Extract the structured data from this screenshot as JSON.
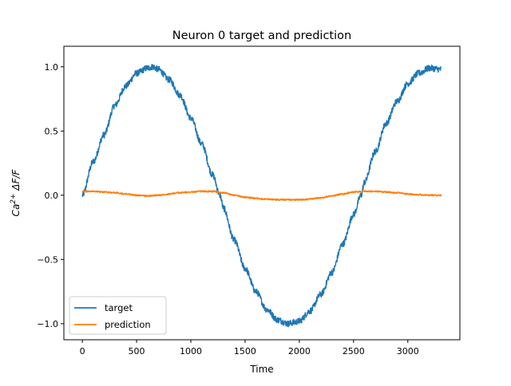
{
  "chart_data": {
    "type": "line",
    "title": "Neuron 0 target and prediction",
    "xlabel": "Time",
    "ylabel": "Ca²⁺ ΔF/F",
    "ylabel_parts": {
      "base": "Ca",
      "sup": "2+",
      "rest": " ΔF/F"
    },
    "xlim": [
      -170,
      3480
    ],
    "ylim": [
      -1.125,
      1.16
    ],
    "x_ticks": [
      0,
      500,
      1000,
      1500,
      2000,
      2500,
      3000
    ],
    "x_tick_labels": [
      "0",
      "500",
      "1000",
      "1500",
      "2000",
      "2500",
      "3000"
    ],
    "y_ticks": [
      1.0,
      0.5,
      0.0,
      -0.5,
      -1.0
    ],
    "y_tick_labels": [
      "1.0",
      "0.5",
      "0.0",
      "−0.5",
      "−1.0"
    ],
    "grid": false,
    "legend_position": "lower-left",
    "series": [
      {
        "name": "target",
        "color": "#1f77b4",
        "noise": 0.025,
        "x": [
          0,
          100,
          200,
          300,
          400,
          500,
          600,
          650,
          700,
          800,
          900,
          1000,
          1100,
          1200,
          1270,
          1300,
          1400,
          1500,
          1600,
          1700,
          1800,
          1900,
          1950,
          2000,
          2100,
          2200,
          2300,
          2400,
          2500,
          2570,
          2600,
          2700,
          2800,
          2900,
          3000,
          3100,
          3200,
          3310
        ],
        "y": [
          0.0,
          0.26,
          0.47,
          0.7,
          0.85,
          0.95,
          0.99,
          1.0,
          0.98,
          0.9,
          0.78,
          0.6,
          0.4,
          0.16,
          0.0,
          -0.1,
          -0.35,
          -0.57,
          -0.75,
          -0.89,
          -0.97,
          -1.0,
          -0.99,
          -0.98,
          -0.9,
          -0.77,
          -0.6,
          -0.38,
          -0.15,
          0.0,
          0.1,
          0.34,
          0.56,
          0.73,
          0.87,
          0.95,
          0.99,
          0.98
        ]
      },
      {
        "name": "prediction",
        "color": "#ff7f0e",
        "noise": 0.006,
        "x": [
          0,
          100,
          200,
          300,
          400,
          500,
          600,
          700,
          800,
          900,
          1000,
          1100,
          1200,
          1300,
          1400,
          1500,
          1600,
          1700,
          1800,
          1900,
          2000,
          2100,
          2200,
          2300,
          2400,
          2500,
          2600,
          2700,
          2800,
          2900,
          3000,
          3100,
          3200,
          3310
        ],
        "y": [
          0.03,
          0.03,
          0.025,
          0.02,
          0.01,
          0.0,
          -0.005,
          0.0,
          0.01,
          0.02,
          0.025,
          0.03,
          0.03,
          0.02,
          0.0,
          -0.015,
          -0.025,
          -0.03,
          -0.035,
          -0.035,
          -0.035,
          -0.03,
          -0.02,
          -0.005,
          0.01,
          0.025,
          0.03,
          0.03,
          0.025,
          0.02,
          0.01,
          0.005,
          0.0,
          0.0
        ]
      }
    ]
  }
}
